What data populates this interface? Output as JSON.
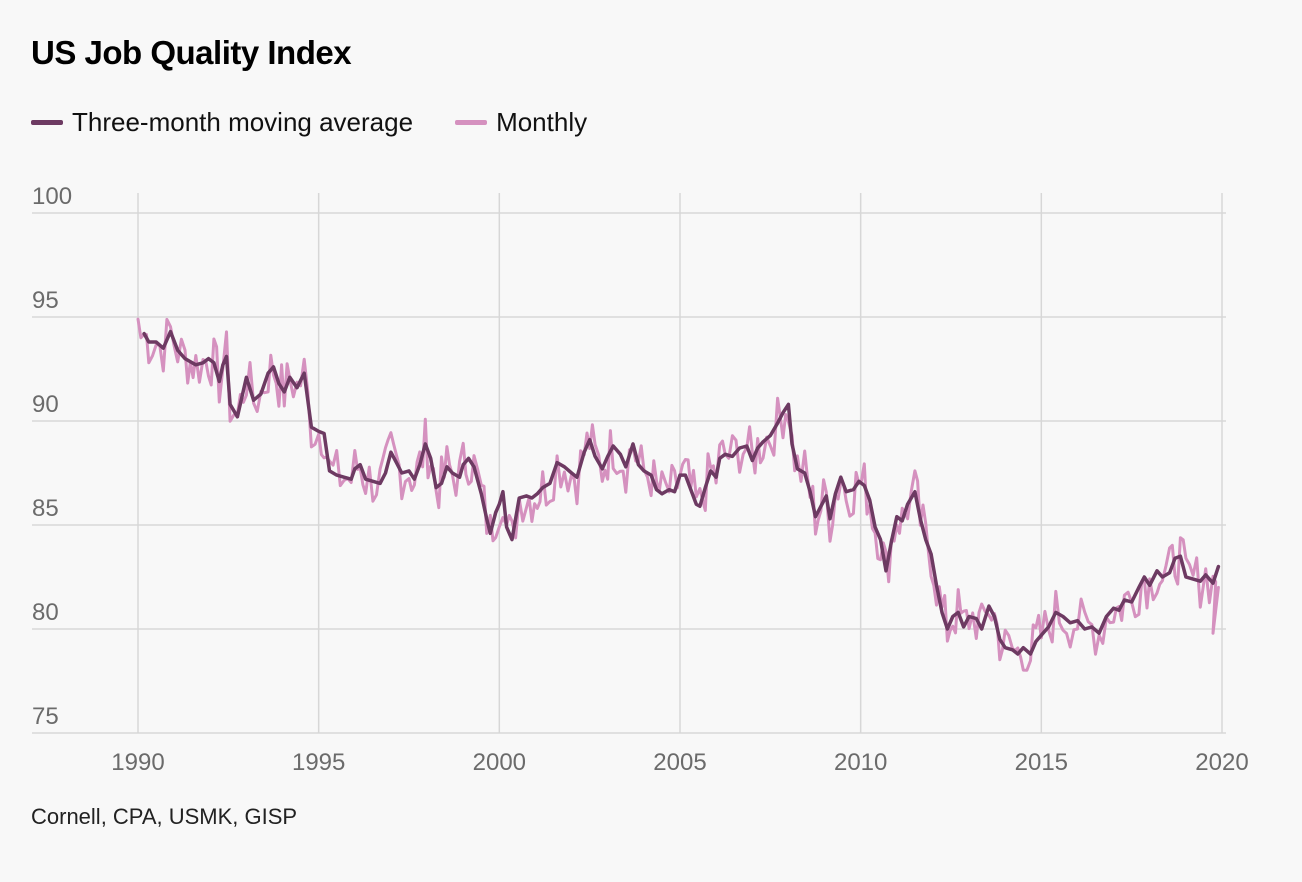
{
  "chart_data": {
    "type": "line",
    "title": "US Job Quality Index",
    "source": "Cornell, CPA, USMK, GISP",
    "xlim": [
      1990,
      2020
    ],
    "ylim": [
      75,
      100
    ],
    "x_ticks": [
      1990,
      1995,
      2000,
      2005,
      2010,
      2015,
      2020
    ],
    "y_ticks": [
      75,
      80,
      85,
      90,
      95,
      100
    ],
    "grid": "on",
    "legend_position": "top-left",
    "series": [
      {
        "name": "Three-month moving average",
        "color": "#6d3a62",
        "points": [
          [
            1990.17,
            94.2
          ],
          [
            1990.3,
            93.8
          ],
          [
            1990.5,
            93.8
          ],
          [
            1990.7,
            93.5
          ],
          [
            1990.9,
            94.3
          ],
          [
            1991.1,
            93.4
          ],
          [
            1991.3,
            93.0
          ],
          [
            1991.6,
            92.7
          ],
          [
            1991.8,
            92.8
          ],
          [
            1991.95,
            93.0
          ],
          [
            1992.1,
            92.8
          ],
          [
            1992.25,
            91.9
          ],
          [
            1992.35,
            92.7
          ],
          [
            1992.45,
            93.1
          ],
          [
            1992.55,
            90.8
          ],
          [
            1992.75,
            90.2
          ],
          [
            1993.0,
            92.1
          ],
          [
            1993.2,
            91.0
          ],
          [
            1993.4,
            91.3
          ],
          [
            1993.6,
            92.3
          ],
          [
            1993.75,
            92.6
          ],
          [
            1993.9,
            91.8
          ],
          [
            1994.05,
            91.4
          ],
          [
            1994.2,
            92.1
          ],
          [
            1994.4,
            91.6
          ],
          [
            1994.6,
            92.3
          ],
          [
            1994.8,
            89.7
          ],
          [
            1995.0,
            89.5
          ],
          [
            1995.15,
            89.4
          ],
          [
            1995.3,
            87.6
          ],
          [
            1995.5,
            87.4
          ],
          [
            1995.7,
            87.3
          ],
          [
            1995.9,
            87.2
          ],
          [
            1996.0,
            87.7
          ],
          [
            1996.15,
            87.9
          ],
          [
            1996.3,
            87.2
          ],
          [
            1996.5,
            87.1
          ],
          [
            1996.7,
            87.0
          ],
          [
            1996.85,
            87.5
          ],
          [
            1997.0,
            88.5
          ],
          [
            1997.15,
            88.0
          ],
          [
            1997.3,
            87.5
          ],
          [
            1997.5,
            87.6
          ],
          [
            1997.65,
            87.2
          ],
          [
            1997.8,
            87.9
          ],
          [
            1997.95,
            88.9
          ],
          [
            1998.1,
            88.2
          ],
          [
            1998.25,
            86.8
          ],
          [
            1998.4,
            87.0
          ],
          [
            1998.55,
            87.8
          ],
          [
            1998.7,
            87.5
          ],
          [
            1998.9,
            87.3
          ],
          [
            1999.0,
            87.9
          ],
          [
            1999.15,
            88.2
          ],
          [
            1999.3,
            87.8
          ],
          [
            1999.5,
            86.5
          ],
          [
            1999.65,
            85.3
          ],
          [
            1999.75,
            84.6
          ],
          [
            1999.9,
            85.6
          ],
          [
            2000.0,
            86.0
          ],
          [
            2000.1,
            86.6
          ],
          [
            2000.2,
            84.9
          ],
          [
            2000.35,
            84.3
          ],
          [
            2000.55,
            86.3
          ],
          [
            2000.75,
            86.4
          ],
          [
            2000.9,
            86.3
          ],
          [
            2001.05,
            86.5
          ],
          [
            2001.2,
            86.8
          ],
          [
            2001.4,
            87.0
          ],
          [
            2001.6,
            88.0
          ],
          [
            2001.8,
            87.8
          ],
          [
            2002.0,
            87.5
          ],
          [
            2002.15,
            87.3
          ],
          [
            2002.35,
            88.5
          ],
          [
            2002.5,
            89.1
          ],
          [
            2002.65,
            88.3
          ],
          [
            2002.85,
            87.7
          ],
          [
            2003.0,
            88.3
          ],
          [
            2003.15,
            88.8
          ],
          [
            2003.35,
            88.4
          ],
          [
            2003.5,
            87.8
          ],
          [
            2003.7,
            88.9
          ],
          [
            2003.85,
            87.9
          ],
          [
            2004.0,
            87.6
          ],
          [
            2004.2,
            87.4
          ],
          [
            2004.35,
            86.7
          ],
          [
            2004.5,
            86.5
          ],
          [
            2004.7,
            86.7
          ],
          [
            2004.85,
            86.6
          ],
          [
            2005.0,
            87.4
          ],
          [
            2005.15,
            87.4
          ],
          [
            2005.3,
            86.7
          ],
          [
            2005.45,
            86.0
          ],
          [
            2005.55,
            85.9
          ],
          [
            2005.7,
            86.8
          ],
          [
            2005.85,
            87.6
          ],
          [
            2006.0,
            87.3
          ],
          [
            2006.1,
            88.2
          ],
          [
            2006.25,
            88.4
          ],
          [
            2006.45,
            88.3
          ],
          [
            2006.65,
            88.7
          ],
          [
            2006.85,
            88.8
          ],
          [
            2007.0,
            88.1
          ],
          [
            2007.15,
            88.7
          ],
          [
            2007.3,
            89.0
          ],
          [
            2007.5,
            89.3
          ],
          [
            2007.7,
            89.9
          ],
          [
            2007.85,
            90.4
          ],
          [
            2008.0,
            90.8
          ],
          [
            2008.1,
            88.9
          ],
          [
            2008.25,
            87.7
          ],
          [
            2008.45,
            87.5
          ],
          [
            2008.6,
            86.6
          ],
          [
            2008.75,
            85.4
          ],
          [
            2008.9,
            85.9
          ],
          [
            2009.05,
            86.4
          ],
          [
            2009.15,
            85.3
          ],
          [
            2009.3,
            86.5
          ],
          [
            2009.45,
            87.3
          ],
          [
            2009.6,
            86.6
          ],
          [
            2009.8,
            86.7
          ],
          [
            2009.95,
            87.1
          ],
          [
            2010.1,
            86.9
          ],
          [
            2010.25,
            86.2
          ],
          [
            2010.4,
            84.9
          ],
          [
            2010.55,
            84.3
          ],
          [
            2010.7,
            82.8
          ],
          [
            2010.85,
            84.2
          ],
          [
            2011.0,
            85.4
          ],
          [
            2011.15,
            85.2
          ],
          [
            2011.3,
            86.0
          ],
          [
            2011.5,
            86.6
          ],
          [
            2011.65,
            85.3
          ],
          [
            2011.8,
            84.3
          ],
          [
            2011.95,
            83.6
          ],
          [
            2012.1,
            82.1
          ],
          [
            2012.25,
            80.8
          ],
          [
            2012.4,
            80.0
          ],
          [
            2012.55,
            80.6
          ],
          [
            2012.7,
            80.8
          ],
          [
            2012.85,
            80.1
          ],
          [
            2013.0,
            80.6
          ],
          [
            2013.2,
            80.5
          ],
          [
            2013.35,
            80.0
          ],
          [
            2013.55,
            81.1
          ],
          [
            2013.7,
            80.6
          ],
          [
            2013.85,
            79.5
          ],
          [
            2014.0,
            79.1
          ],
          [
            2014.2,
            79.0
          ],
          [
            2014.35,
            78.8
          ],
          [
            2014.5,
            79.1
          ],
          [
            2014.7,
            78.8
          ],
          [
            2014.85,
            79.4
          ],
          [
            2015.0,
            79.7
          ],
          [
            2015.2,
            80.1
          ],
          [
            2015.4,
            80.8
          ],
          [
            2015.6,
            80.6
          ],
          [
            2015.8,
            80.3
          ],
          [
            2016.0,
            80.4
          ],
          [
            2016.2,
            80.0
          ],
          [
            2016.4,
            80.1
          ],
          [
            2016.6,
            79.8
          ],
          [
            2016.8,
            80.6
          ],
          [
            2017.0,
            81.0
          ],
          [
            2017.15,
            80.9
          ],
          [
            2017.3,
            81.4
          ],
          [
            2017.5,
            81.3
          ],
          [
            2017.7,
            82.0
          ],
          [
            2017.85,
            82.5
          ],
          [
            2018.0,
            82.1
          ],
          [
            2018.2,
            82.8
          ],
          [
            2018.35,
            82.5
          ],
          [
            2018.55,
            82.7
          ],
          [
            2018.7,
            83.4
          ],
          [
            2018.85,
            83.5
          ],
          [
            2019.0,
            82.5
          ],
          [
            2019.2,
            82.4
          ],
          [
            2019.4,
            82.3
          ],
          [
            2019.55,
            82.6
          ],
          [
            2019.75,
            82.2
          ],
          [
            2019.9,
            83.0
          ]
        ]
      },
      {
        "name": "Monthly",
        "color": "#d591bf",
        "points": []
      }
    ]
  }
}
